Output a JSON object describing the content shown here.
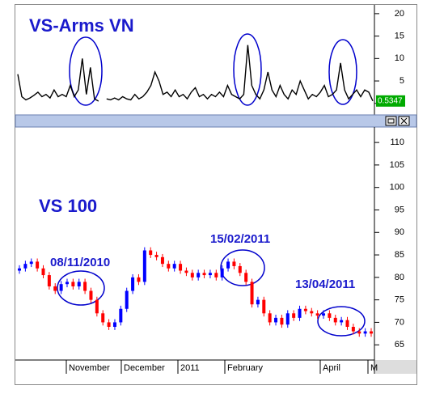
{
  "charts": [
    {
      "type": "line",
      "title": "VS-Arms VN",
      "color": "#000000",
      "values": [
        6.5,
        1.5,
        0.8,
        1.2,
        1.8,
        2.5,
        1.5,
        2,
        1.2,
        3,
        1.5,
        2,
        1.5,
        4,
        1.5,
        3,
        10,
        2,
        8,
        1,
        0.5,
        null,
        1,
        0.8,
        1.2,
        0.8,
        1.5,
        1,
        0.8,
        2,
        1,
        1.5,
        2.5,
        4,
        7,
        5,
        2,
        2.5,
        1.5,
        3,
        1.5,
        2,
        1,
        2.5,
        3.5,
        1.5,
        2,
        1,
        2,
        1.5,
        2.5,
        1.5,
        4,
        2,
        1.5,
        1,
        2,
        13,
        4,
        2,
        1,
        3,
        7,
        3,
        1.5,
        4,
        2,
        1,
        3,
        2,
        5,
        3,
        1,
        2,
        1.5,
        2.5,
        4,
        1.5,
        2,
        3,
        9,
        3,
        1,
        2,
        3,
        1.5,
        3,
        2.5,
        0.5347
      ],
      "current_value": 0.5347,
      "ylim": [
        -1.3,
        21.6
      ],
      "yticks": [
        0,
        5,
        10,
        15,
        20
      ]
    },
    {
      "type": "candlestick",
      "title": "VS 100",
      "up_color": "#0000ff",
      "down_color": "#ff0000",
      "open": [
        81.5,
        82,
        83,
        83.5,
        82,
        80.5,
        78,
        77,
        78.5,
        79,
        78,
        79,
        77,
        75,
        72,
        70,
        69,
        70,
        73,
        77,
        80,
        79,
        86,
        85,
        84.5,
        83,
        82,
        83,
        81.5,
        81,
        80,
        81,
        80.5,
        81,
        80,
        82,
        83.5,
        82.5,
        81,
        79,
        74,
        75,
        72,
        70,
        71,
        69.5,
        72,
        71,
        73,
        72.5,
        72,
        71.5,
        72,
        71,
        70,
        70.5,
        69,
        68,
        67.5,
        68
      ],
      "high": [
        82.7,
        83.7,
        84.2,
        84.2,
        82.7,
        81.2,
        78.7,
        79.2,
        79.7,
        79.7,
        79.7,
        79.7,
        77.7,
        75.7,
        72.7,
        70.7,
        70.7,
        73.7,
        77.7,
        80.7,
        80.7,
        86.7,
        86.7,
        85.7,
        85.2,
        83.7,
        83.7,
        83.7,
        82.2,
        81.7,
        81.7,
        81.7,
        81.7,
        81.7,
        82.7,
        84.2,
        84.2,
        83.2,
        81.7,
        79.7,
        75.7,
        75.7,
        72.7,
        71.7,
        71.7,
        72.7,
        72.7,
        73.7,
        73.7,
        73.2,
        72.7,
        72.7,
        72.7,
        71.7,
        71.2,
        71.2,
        69.7,
        68.7,
        68.7,
        68.7
      ],
      "low": [
        80.8,
        81.3,
        82.3,
        81.3,
        79.8,
        77.3,
        76.3,
        76.3,
        77.8,
        77.3,
        77.3,
        76.3,
        74.3,
        71.3,
        69.3,
        68.3,
        68.3,
        69.3,
        72.3,
        76.3,
        78.3,
        78.3,
        84.3,
        83.8,
        82.3,
        81.3,
        81.3,
        80.8,
        80.3,
        79.3,
        79.3,
        79.8,
        79.8,
        79.3,
        79.3,
        81.3,
        81.8,
        80.3,
        78.3,
        73.3,
        73.3,
        71.3,
        69.3,
        69.3,
        68.8,
        68.8,
        70.3,
        70.3,
        71.8,
        71.3,
        70.8,
        70.8,
        70.3,
        69.3,
        69.3,
        68.3,
        67.3,
        66.8,
        66.8,
        66.8
      ],
      "close": [
        82,
        83,
        83.5,
        82,
        80.5,
        78,
        77,
        78.5,
        79,
        78,
        79,
        77,
        75,
        72,
        70,
        69,
        70,
        73,
        77,
        80,
        79,
        86,
        85,
        84.5,
        83,
        82,
        83,
        81.5,
        81,
        80,
        81,
        80.5,
        81,
        80,
        82,
        83.5,
        82.5,
        81,
        79,
        74,
        75,
        72,
        70,
        71,
        69.5,
        72,
        71,
        73,
        72.5,
        72,
        71.5,
        72,
        71,
        70,
        70.5,
        69,
        68,
        67.5,
        68,
        67.5
      ],
      "annotations": [
        "08/11/2010",
        "15/02/2011",
        "13/04/2011"
      ],
      "x_labels": [
        "November",
        "December",
        "2011",
        "February",
        "April",
        "M"
      ],
      "ylim": [
        61.8,
        112.9
      ],
      "yticks": [
        65,
        70,
        75,
        80,
        85,
        90,
        95,
        100,
        105,
        110
      ]
    }
  ]
}
